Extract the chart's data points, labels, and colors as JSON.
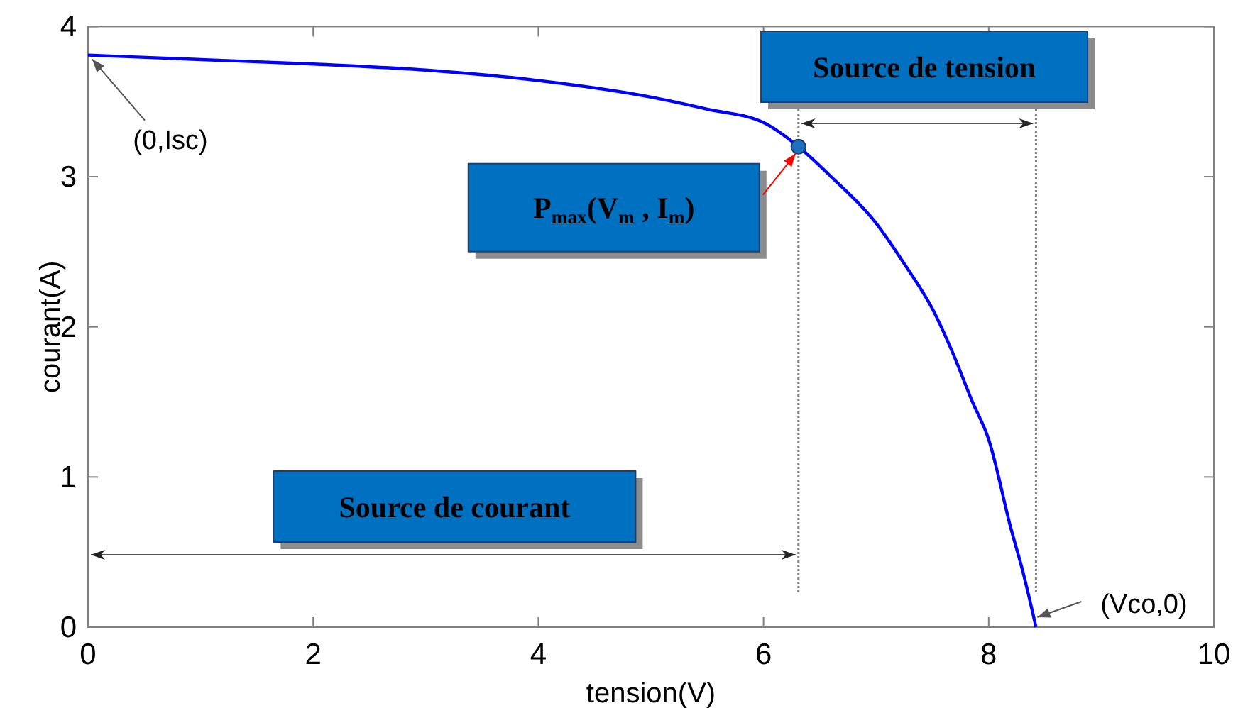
{
  "chart_data": {
    "type": "line",
    "xlabel": "tension(V)",
    "ylabel": "courant(A)",
    "xlim": [
      0,
      10
    ],
    "xticks": [
      0,
      2,
      4,
      6,
      8,
      10
    ],
    "ylim": [
      0,
      4
    ],
    "yticks": [
      0,
      1,
      2,
      3,
      4
    ],
    "grid": false,
    "series": [
      {
        "color": "#0000ff",
        "x": [
          0,
          1,
          2,
          3,
          4,
          5,
          5.5,
          6,
          6.31,
          6.6,
          7,
          7.25,
          7.5,
          7.69,
          7.85,
          8,
          8.2,
          8.3,
          8.42
        ],
        "values": [
          3.81,
          3.78,
          3.75,
          3.71,
          3.64,
          3.53,
          3.45,
          3.36,
          3.2,
          3.0,
          2.69,
          2.42,
          2.12,
          1.81,
          1.51,
          1.25,
          0.65,
          0.38,
          0
        ]
      },
      {
        "type": "scatter",
        "color": "#1f6fbf",
        "marker": "circle",
        "x": [
          6.31
        ],
        "values": [
          3.2
        ]
      }
    ],
    "ref_lines": [
      {
        "axis": "x",
        "value": 6.31,
        "color": "#808080",
        "line_style": "dotted"
      },
      {
        "axis": "x",
        "value": 8.42,
        "color": "#808080",
        "line_style": "dotted"
      }
    ],
    "annotations": [
      {
        "text": "(0,Isc)",
        "x": 0,
        "y": 3.81
      },
      "P$_{max}$(V$_{m}$ , I$_{m}$)",
      "Source de tension",
      "Source de courant",
      {
        "text": "(Vco,0)",
        "x": 8.42,
        "y": 0
      }
    ]
  }
}
